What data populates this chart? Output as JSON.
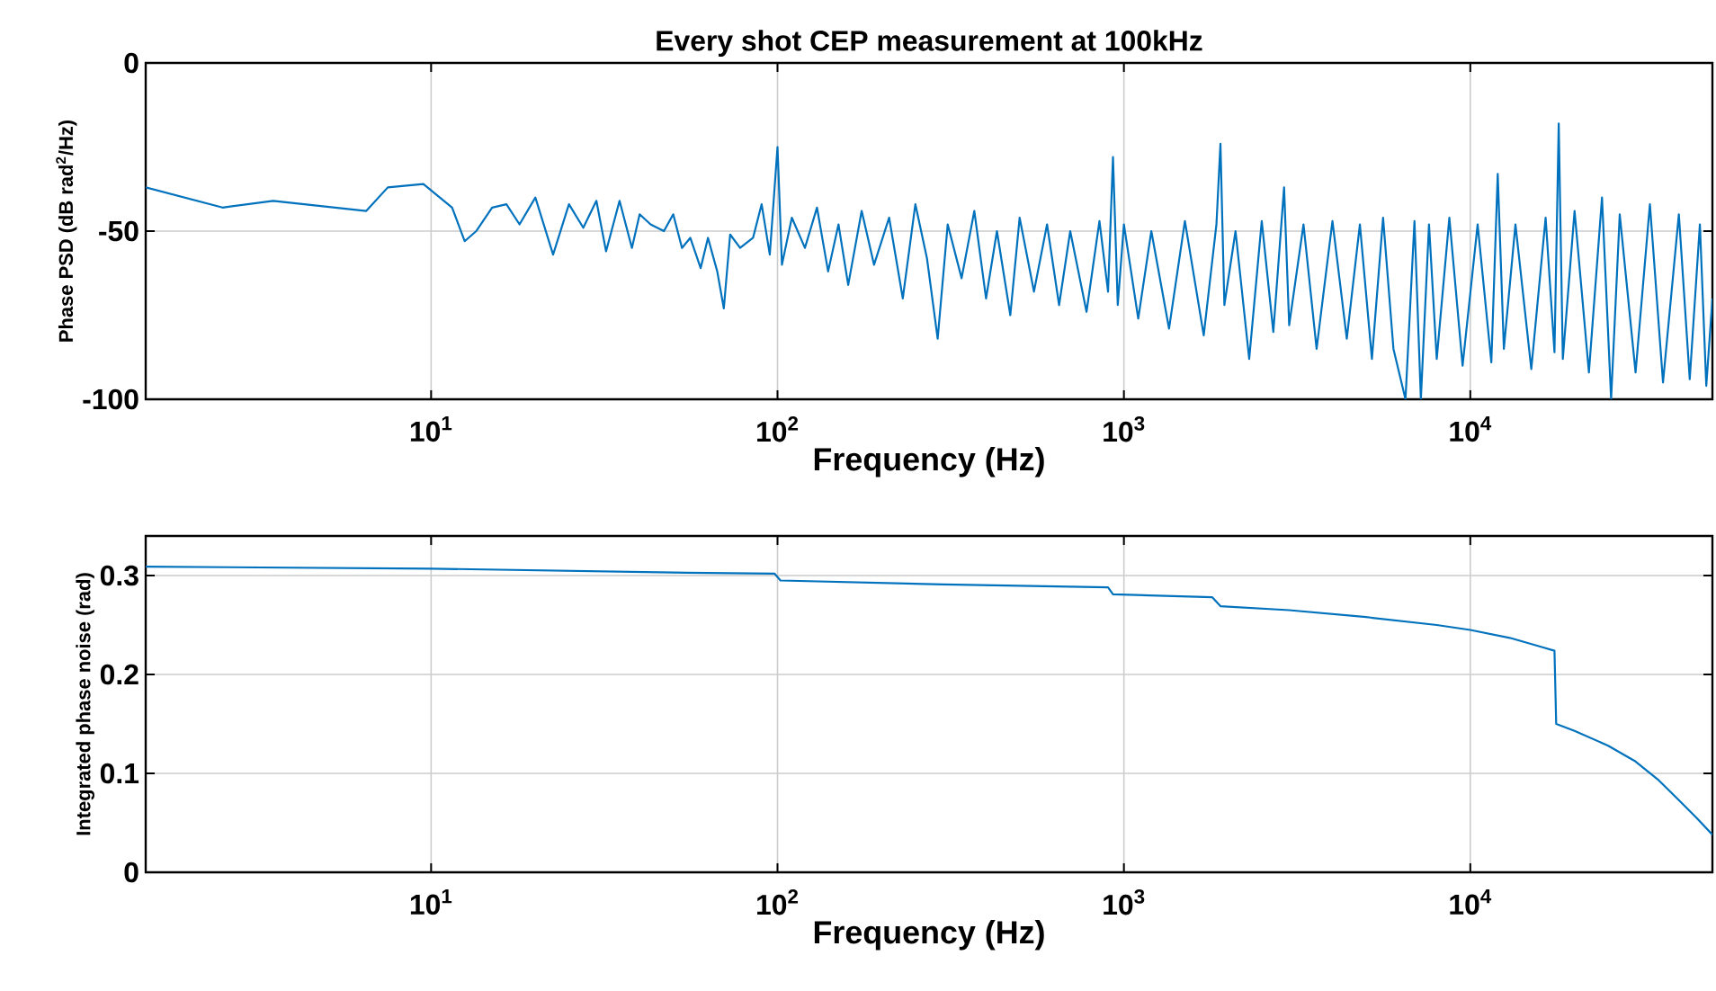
{
  "chart_data": [
    {
      "type": "line",
      "title": "Every shot CEP measurement at 100kHz",
      "xlabel": "Frequency (Hz)",
      "ylabel": "Phase PSD (dB rad$^{2}$/Hz)",
      "log": "x",
      "grid": true,
      "xlim": [
        1.5,
        50000
      ],
      "ylim": [
        -100,
        0
      ],
      "xticks": [
        {
          "value": 10,
          "label": "10$^{1}$"
        },
        {
          "value": 100,
          "label": "10$^{2}$"
        },
        {
          "value": 1000,
          "label": "10$^{3}$"
        },
        {
          "value": 10000,
          "label": "10$^{4}$"
        }
      ],
      "yticks": [
        -100,
        -50,
        0
      ],
      "series": [
        {
          "color": "#0072bd",
          "x": [
            1.5,
            2.5,
            3.5,
            6.5,
            7.5,
            9.5,
            11.5,
            12.5,
            13.5,
            15,
            16.5,
            18,
            20,
            22.5,
            25,
            27.5,
            30,
            32,
            35,
            38,
            40,
            43,
            47,
            50,
            53,
            56,
            60,
            63,
            67,
            70,
            73,
            78,
            85,
            90,
            95,
            100,
            103,
            110,
            120,
            130,
            140,
            150,
            160,
            175,
            190,
            210,
            230,
            250,
            270,
            290,
            310,
            340,
            370,
            400,
            430,
            470,
            500,
            550,
            600,
            650,
            700,
            780,
            850,
            900,
            930,
            960,
            1000,
            1100,
            1200,
            1350,
            1500,
            1700,
            1850,
            1900,
            1950,
            2100,
            2300,
            2500,
            2700,
            2900,
            3000,
            3300,
            3600,
            4000,
            4400,
            4800,
            5200,
            5600,
            6000,
            6500,
            6900,
            7200,
            7600,
            8000,
            8700,
            9500,
            10500,
            11500,
            12000,
            12500,
            13500,
            15000,
            16500,
            17500,
            18000,
            18500,
            20000,
            22000,
            24000,
            25500,
            27000,
            30000,
            33000,
            36000,
            40000,
            43000,
            46000,
            48000,
            50000
          ],
          "values": [
            -37,
            -43,
            -41,
            -44,
            -37,
            -36,
            -43,
            -53,
            -50,
            -43,
            -42,
            -48,
            -40,
            -57,
            -42,
            -49,
            -41,
            -56,
            -41,
            -55,
            -45,
            -48,
            -50,
            -45,
            -55,
            -52,
            -61,
            -52,
            -62,
            -73,
            -51,
            -55,
            -52,
            -42,
            -57,
            -25,
            -60,
            -46,
            -55,
            -43,
            -62,
            -48,
            -66,
            -44,
            -60,
            -46,
            -70,
            -42,
            -58,
            -82,
            -48,
            -64,
            -44,
            -70,
            -50,
            -75,
            -46,
            -68,
            -48,
            -72,
            -50,
            -74,
            -47,
            -68,
            -28,
            -72,
            -48,
            -76,
            -50,
            -79,
            -47,
            -81,
            -48,
            -24,
            -72,
            -50,
            -88,
            -47,
            -80,
            -37,
            -78,
            -48,
            -85,
            -47,
            -82,
            -48,
            -88,
            -46,
            -85,
            -100,
            -47,
            -100,
            -48,
            -88,
            -46,
            -90,
            -48,
            -89,
            -33,
            -85,
            -48,
            -91,
            -46,
            -86,
            -18,
            -88,
            -44,
            -92,
            -40,
            -100,
            -45,
            -92,
            -42,
            -95,
            -45,
            -94,
            -48,
            -96,
            -70
          ]
        }
      ]
    },
    {
      "type": "line",
      "xlabel": "Frequency (Hz)",
      "ylabel": "Integrated phase noise (rad)",
      "log": "x",
      "grid": true,
      "xlim": [
        1.5,
        50000
      ],
      "ylim": [
        0,
        0.34
      ],
      "xticks": [
        {
          "value": 10,
          "label": "10$^{1}$"
        },
        {
          "value": 100,
          "label": "10$^{2}$"
        },
        {
          "value": 1000,
          "label": "10$^{3}$"
        },
        {
          "value": 10000,
          "label": "10$^{4}$"
        }
      ],
      "yticks": [
        0,
        0.1,
        0.2,
        0.3
      ],
      "series": [
        {
          "color": "#0072bd",
          "x": [
            1.5,
            10,
            50,
            98,
            102,
            300,
            900,
            930,
            1800,
            1900,
            3000,
            5000,
            8000,
            10000,
            13000,
            16000,
            17500,
            17700,
            20000,
            25000,
            30000,
            35000,
            40000,
            45000,
            50000
          ],
          "values": [
            0.309,
            0.307,
            0.303,
            0.302,
            0.295,
            0.291,
            0.288,
            0.281,
            0.278,
            0.269,
            0.265,
            0.258,
            0.25,
            0.245,
            0.237,
            0.228,
            0.224,
            0.15,
            0.143,
            0.128,
            0.112,
            0.093,
            0.073,
            0.055,
            0.038
          ]
        }
      ]
    }
  ]
}
